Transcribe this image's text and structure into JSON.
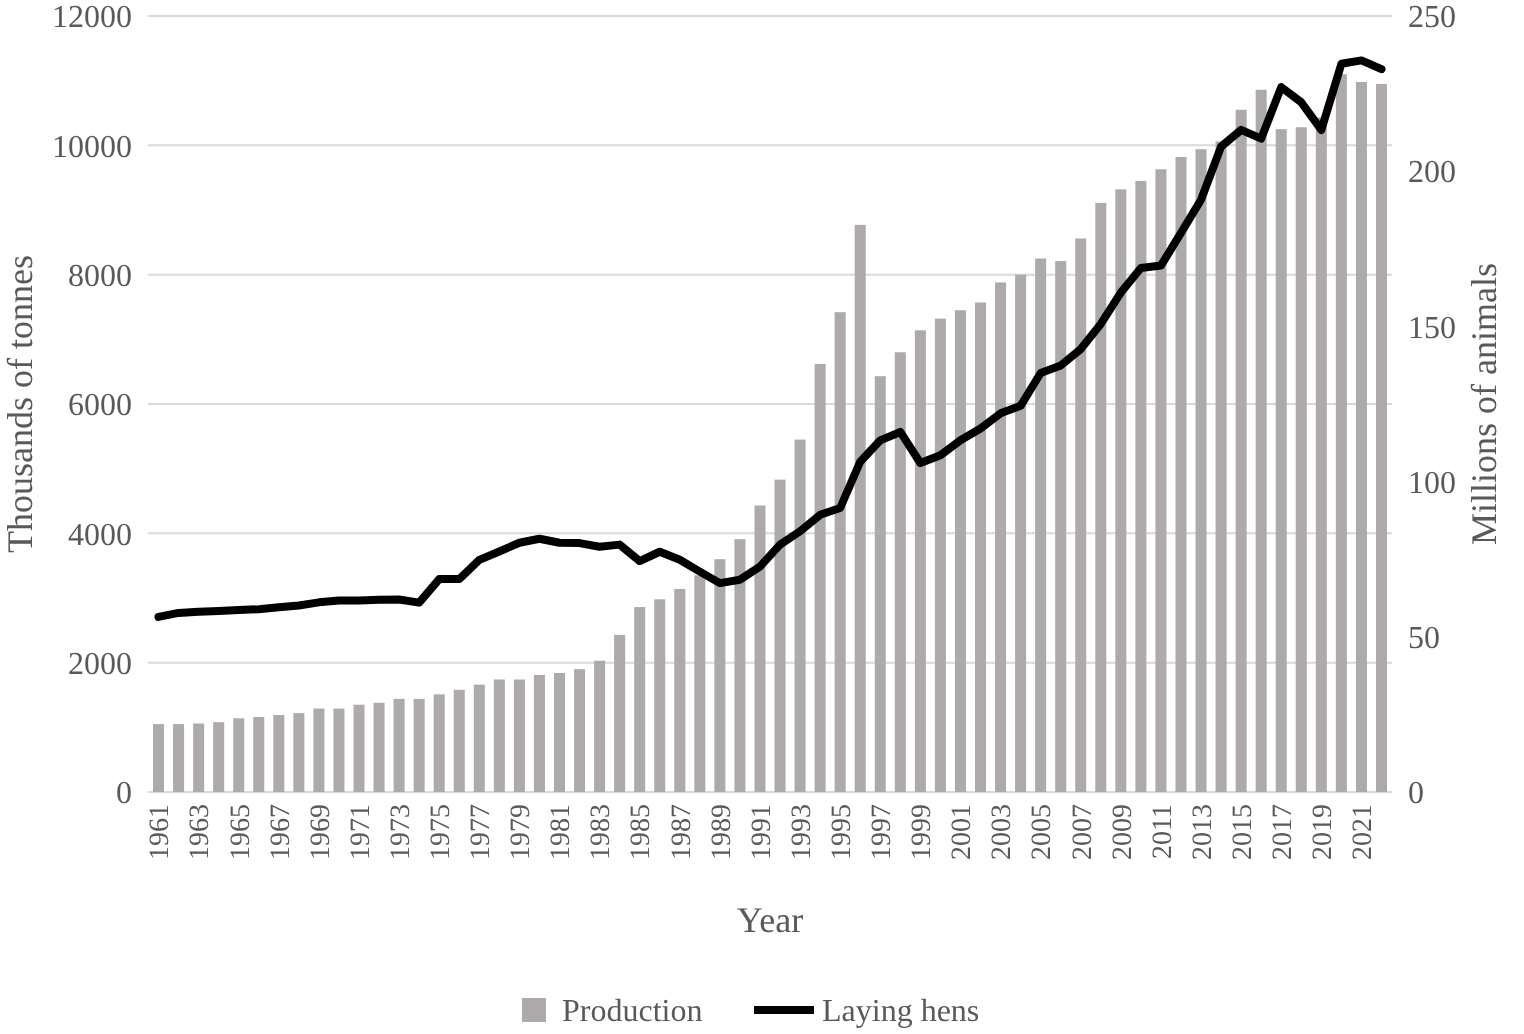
{
  "chart_data": {
    "type": "bar",
    "xlabel": "Year",
    "ylabel": "Thousands of tonnes",
    "y2label": "Millions of animals",
    "categories": [
      "1961",
      null,
      "1963",
      null,
      "1965",
      null,
      "1967",
      null,
      "1969",
      null,
      "1971",
      null,
      "1973",
      null,
      "1975",
      null,
      "1977",
      null,
      "1979",
      null,
      "1981",
      null,
      "1983",
      null,
      "1985",
      null,
      "1987",
      null,
      "1989",
      null,
      "1991",
      null,
      "1993",
      null,
      "1995",
      null,
      "1997",
      null,
      "1999",
      null,
      "2001",
      null,
      "2003",
      null,
      "2005",
      null,
      "2007",
      null,
      "2009",
      null,
      "2011",
      null,
      "2013",
      null,
      "2015",
      null,
      "2017",
      null,
      "2019",
      null,
      "2021",
      null
    ],
    "series": [
      {
        "name": "Production",
        "color": "#aeaaaa",
        "values": [
          1050,
          1050,
          1060,
          1080,
          1140,
          1160,
          1190,
          1220,
          1290,
          1290,
          1350,
          1380,
          1440,
          1440,
          1510,
          1580,
          1660,
          1740,
          1740,
          1810,
          1840,
          1900,
          2030,
          2430,
          2860,
          2980,
          3140,
          3350,
          3600,
          3910,
          4430,
          4830,
          5450,
          6620,
          7420,
          8770,
          6430,
          6800,
          7140,
          7320,
          7450,
          7570,
          7880,
          8000,
          8250,
          8210,
          8560,
          9110,
          9320,
          9450,
          9630,
          9820,
          9940,
          10060,
          10550,
          10860,
          10250,
          10280,
          10430,
          11100,
          10980,
          10950
        ]
      },
      {
        "name": "Laying hens",
        "type": "line",
        "axis": "y2",
        "color": "#000000",
        "values": [
          56.4,
          57.7,
          58.1,
          58.3,
          58.6,
          58.9,
          59.5,
          60.1,
          61.1,
          61.7,
          61.7,
          61.9,
          62,
          61,
          68.6,
          68.6,
          74.8,
          77.5,
          80.3,
          81.6,
          80.3,
          80.2,
          79,
          79.7,
          74.4,
          77.4,
          74.8,
          71,
          67.3,
          68.4,
          72.6,
          79.7,
          84,
          89.3,
          91.5,
          106.4,
          113.3,
          116,
          106,
          108.5,
          113.3,
          117.1,
          122,
          124.4,
          135,
          137.4,
          142.7,
          150.8,
          160.9,
          168.8,
          169.6,
          180.1,
          190.8,
          207.9,
          213.3,
          210.5,
          227.1,
          222.2,
          213.3,
          234.6,
          235.7,
          232.9
        ]
      }
    ],
    "ylim": [
      0,
      12000
    ],
    "yticks": [
      0,
      2000,
      4000,
      6000,
      8000,
      10000,
      12000
    ],
    "y2lim": [
      0,
      250
    ],
    "y2ticks": [
      0,
      50,
      100,
      150,
      200,
      250
    ],
    "grid": "y",
    "legend": "bottom"
  }
}
